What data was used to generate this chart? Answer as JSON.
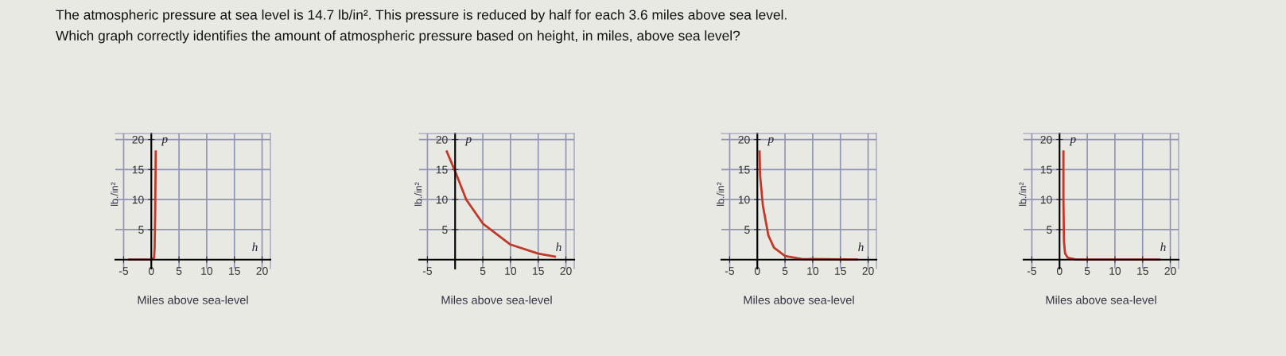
{
  "chart_data": [
    {
      "type": "line",
      "title": "The atmospheric pressure at sea level is 14.7 lb/in². This pressure is reduced by half for each 3.6 miles above sea level.\nWhich graph correctly identifies the amount of atmospheric pressure based on height, in miles, above sea level?",
      "xlabel": "Miles above sea-level",
      "ylabel": "lb./in²",
      "annotations": [
        "p",
        "h"
      ],
      "xlim": [
        -6.5,
        21.5
      ],
      "ylim": [
        -1.5,
        21
      ],
      "xticks": [
        -5,
        0,
        5,
        10,
        15,
        20
      ],
      "yticks": [
        5,
        10,
        15,
        20
      ],
      "grid": true,
      "marker": "none",
      "series": [
        {
          "color": "#c0392b",
          "x": [
            -4,
            0,
            0.5,
            0.6,
            0.7,
            0.8
          ],
          "values": [
            0,
            0,
            0.3,
            2,
            8,
            18
          ]
        }
      ]
    },
    {
      "type": "line",
      "xlabel": "Miles above sea-level",
      "ylabel": "lb./in²",
      "annotations": [
        "p",
        "h"
      ],
      "xlim": [
        -6.5,
        21.5
      ],
      "ylim": [
        -1.5,
        21
      ],
      "xticks": [
        -5,
        {
          "value": 0,
          "label": null
        },
        5,
        10,
        15,
        20
      ],
      "yticks": [
        5,
        10,
        15,
        20
      ],
      "grid": true,
      "marker": "none",
      "series": [
        {
          "color": "#c0392b",
          "x": [
            -1.5,
            0,
            2,
            5,
            10,
            15,
            18
          ],
          "values": [
            18,
            14.7,
            10,
            6,
            2.5,
            1,
            0.5
          ]
        }
      ]
    },
    {
      "type": "line",
      "xlabel": "Miles above sea-level",
      "ylabel": "lb./in²",
      "annotations": [
        "p",
        "h"
      ],
      "xlim": [
        -6.5,
        21.5
      ],
      "ylim": [
        -1.5,
        21
      ],
      "xticks": [
        -5,
        0,
        5,
        10,
        15,
        20
      ],
      "yticks": [
        5,
        10,
        15,
        20
      ],
      "grid": true,
      "marker": "none",
      "series": [
        {
          "color": "#c0392b",
          "x": [
            0.4,
            0.5,
            1,
            2,
            3,
            5,
            8,
            18
          ],
          "values": [
            18,
            14,
            9,
            4,
            2,
            0.6,
            0.1,
            0
          ]
        }
      ]
    },
    {
      "type": "line",
      "xlabel": "Miles above sea-level",
      "ylabel": "lb./in²",
      "annotations": [
        "p",
        "h"
      ],
      "xlim": [
        -6.5,
        21.5
      ],
      "ylim": [
        -1.5,
        21
      ],
      "xticks": [
        -5,
        0,
        5,
        10,
        15,
        20
      ],
      "yticks": [
        5,
        10,
        15,
        20
      ],
      "grid": true,
      "marker": "none",
      "series": [
        {
          "color": "#c0392b",
          "x": [
            0.7,
            0.7,
            0.8,
            1,
            1.5,
            3,
            18
          ],
          "values": [
            18,
            10,
            3,
            1,
            0.3,
            0,
            0
          ]
        }
      ]
    }
  ]
}
